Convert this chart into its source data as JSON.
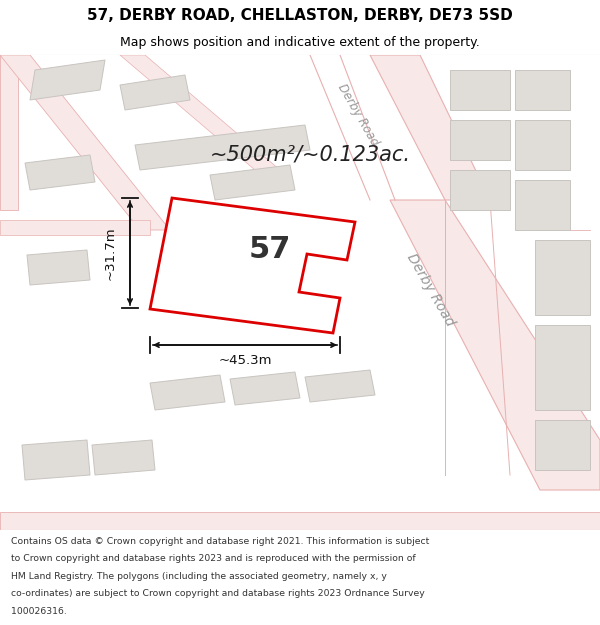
{
  "title_line1": "57, DERBY ROAD, CHELLASTON, DERBY, DE73 5SD",
  "title_line2": "Map shows position and indicative extent of the property.",
  "area_text": "~500m²/~0.123ac.",
  "property_number": "57",
  "dim_width": "~45.3m",
  "dim_height": "~31.7m",
  "footer_text": "Contains OS data © Crown copyright and database right 2021. This information is subject to Crown copyright and database rights 2023 and is reproduced with the permission of HM Land Registry. The polygons (including the associated geometry, namely x, y co-ordinates) are subject to Crown copyright and database rights 2023 Ordnance Survey 100026316.",
  "bg_color": "#f5f3f0",
  "road_fill": "#f9e8e8",
  "road_edge": "#e8b0b0",
  "building_fill": "#e0ddd9",
  "building_edge": "#c8c4c0",
  "property_fill": "#ffffff",
  "property_edge": "#dd0000",
  "road_label_color": "#999999",
  "title_color": "#000000",
  "footer_color": "#333333",
  "dim_color": "#111111",
  "white": "#ffffff",
  "title_sep_color": "#cccccc"
}
